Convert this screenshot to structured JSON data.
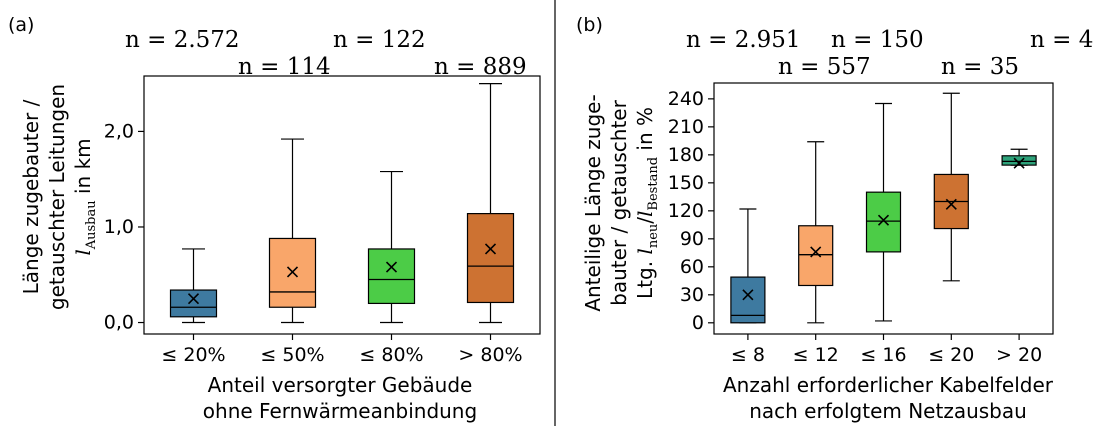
{
  "chart_data": [
    {
      "panel_label": "(a)",
      "type": "box",
      "categories": [
        "≤ 20%",
        "≤ 50%",
        "≤ 80%",
        "> 80%"
      ],
      "counts": [
        "n = 2.572",
        "n = 114",
        "n = 122",
        "n = 889"
      ],
      "xlabel": [
        "Anteil versorgter Gebäude",
        "ohne Fernwärmeanbindung"
      ],
      "ylabel": [
        "Länge zugebauter /",
        "getauschter Leitungen"
      ],
      "ylabel_symbol": "l",
      "ylabel_sub": "Ausbau",
      "ylabel_unit": " in km",
      "yticks": [
        0,
        1,
        2
      ],
      "ytick_labels": [
        "0,0",
        "1,0",
        "2,0"
      ],
      "ylim": [
        -0.12,
        2.58
      ],
      "boxes": [
        {
          "min": 0.0,
          "q1": 0.06,
          "median": 0.16,
          "q3": 0.34,
          "max": 0.77,
          "mean": 0.25,
          "color": "#3e7aa0"
        },
        {
          "min": 0.0,
          "q1": 0.16,
          "median": 0.32,
          "q3": 0.88,
          "max": 1.92,
          "mean": 0.53,
          "color": "#f9a66a"
        },
        {
          "min": 0.0,
          "q1": 0.2,
          "median": 0.45,
          "q3": 0.77,
          "max": 1.58,
          "mean": 0.58,
          "color": "#4ccc47"
        },
        {
          "min": 0.0,
          "q1": 0.21,
          "median": 0.59,
          "q3": 1.14,
          "max": 2.5,
          "mean": 0.77,
          "color": "#cd7232"
        }
      ]
    },
    {
      "panel_label": "(b)",
      "type": "box",
      "categories": [
        "≤ 8",
        "≤ 12",
        "≤ 16",
        "≤ 20",
        "> 20"
      ],
      "counts": [
        "n = 2.951",
        "n = 557",
        "n = 150",
        "n = 35",
        "n = 4"
      ],
      "xlabel": [
        "Anzahl erforderlicher Kabelfelder",
        "nach erfolgtem Netzausbau"
      ],
      "ylabel": [
        "Anteilige Länge zuge-",
        "bauter / getauschter"
      ],
      "ylabel3_prefix": "Ltg. ",
      "ylabel3_sym1": "l",
      "ylabel3_sub1": "neu",
      "ylabel3_slash": "/",
      "ylabel3_sym2": "l",
      "ylabel3_sub2": "Bestand",
      "ylabel3_unit": " in %",
      "yticks": [
        0,
        30,
        60,
        90,
        120,
        150,
        180,
        210,
        240
      ],
      "ytick_labels": [
        "0",
        "30",
        "60",
        "90",
        "120",
        "150",
        "180",
        "210",
        "240"
      ],
      "ylim": [
        -12,
        257
      ],
      "boxes": [
        {
          "min": 0,
          "q1": 0,
          "median": 8,
          "q3": 49,
          "max": 122,
          "mean": 30,
          "color": "#3e7aa0"
        },
        {
          "min": 0,
          "q1": 40,
          "median": 73,
          "q3": 104,
          "max": 194,
          "mean": 76,
          "color": "#f9a66a"
        },
        {
          "min": 2,
          "q1": 76,
          "median": 109,
          "q3": 140,
          "max": 235,
          "mean": 110,
          "color": "#4ccc47"
        },
        {
          "min": 45,
          "q1": 101,
          "median": 130,
          "q3": 159,
          "max": 246,
          "mean": 127,
          "color": "#cd7232"
        },
        {
          "min": 169,
          "q1": 169,
          "median": 173,
          "q3": 179,
          "max": 186,
          "mean": 171,
          "color": "#2ea27a"
        }
      ]
    }
  ]
}
